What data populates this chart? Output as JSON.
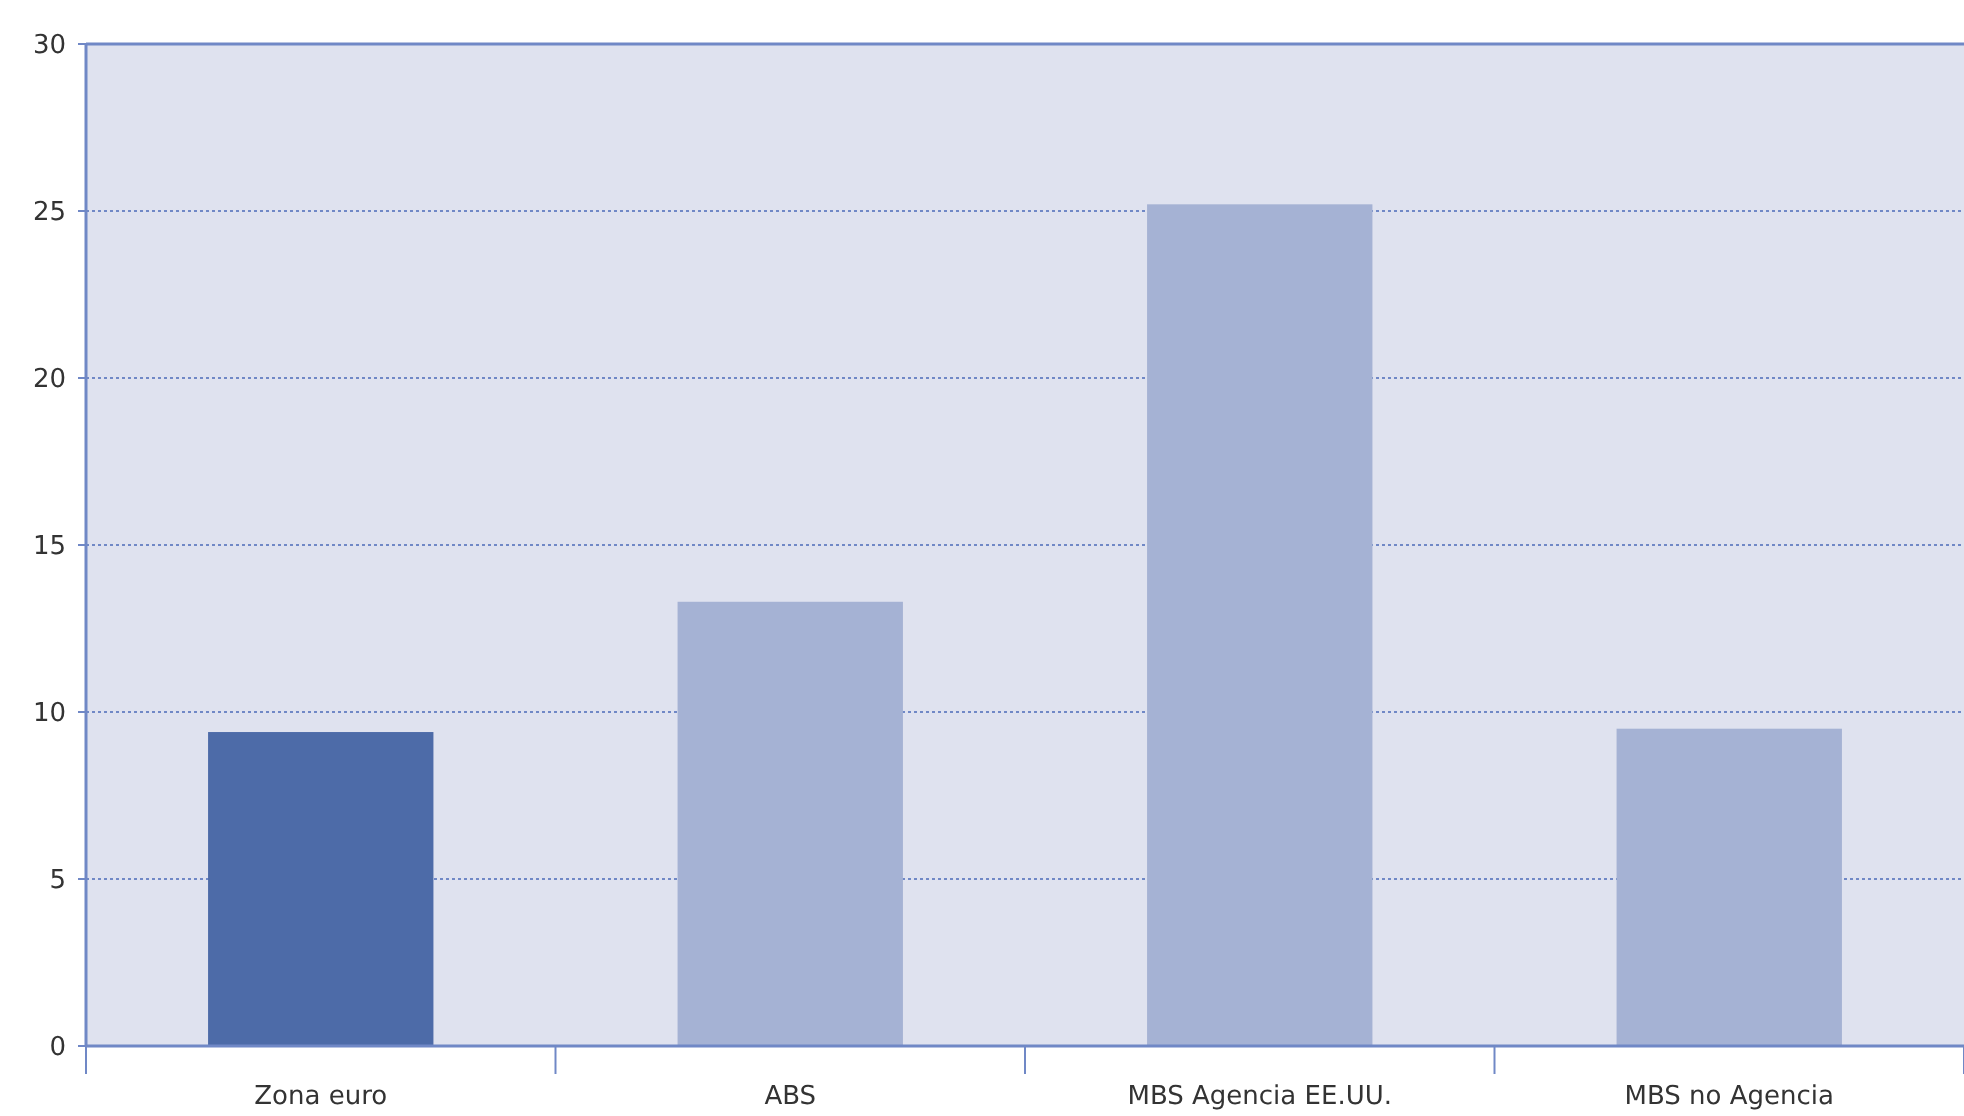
{
  "chart_data": {
    "type": "bar",
    "categories": [
      "Zona euro",
      "ABS",
      "MBS Agencia EE.UU.",
      "MBS no Agencia"
    ],
    "values": [
      9.4,
      13.3,
      25.2,
      9.5
    ],
    "colors": [
      "#4d6ba8",
      "#a5b2d4",
      "#a5b2d4",
      "#a5b2d4"
    ],
    "ylim": [
      0,
      30
    ],
    "yticks": [
      0,
      5,
      10,
      15,
      20,
      25,
      30
    ],
    "grid": "y"
  }
}
